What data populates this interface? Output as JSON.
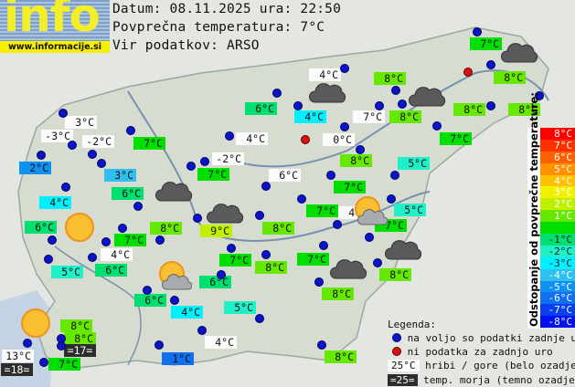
{
  "logo": {
    "big_text": "info",
    "url": "www.informacije.si"
  },
  "header": {
    "date_line": "Datum: 08.11.2025 ura: 22:50",
    "avg_line": "Povprečna temperatura: 7°C",
    "source_line": "Vir podatkov: ARSO"
  },
  "average_temp": 7,
  "stations": [
    {
      "t": "7°C",
      "type": "n"
    },
    {
      "t": "4°C",
      "type": "mt"
    },
    {
      "t": "8°C",
      "type": "n"
    },
    {
      "t": "8°C",
      "type": "n"
    },
    {
      "t": "6°C",
      "type": "n"
    },
    {
      "t": "4°C",
      "type": "n"
    },
    {
      "t": "7°C",
      "type": "mt"
    },
    {
      "t": "8°C",
      "type": "n"
    },
    {
      "t": "8°C",
      "type": "n"
    },
    {
      "t": "8°C",
      "type": "n"
    },
    {
      "t": "3°C",
      "type": "mt"
    },
    {
      "t": "-3°C",
      "type": "mt"
    },
    {
      "t": "-2°C",
      "type": "mt"
    },
    {
      "t": "7°C",
      "type": "n"
    },
    {
      "t": "4°C",
      "type": "mt"
    },
    {
      "t": "0°C",
      "type": "mt"
    },
    {
      "t": "7°C",
      "type": "n"
    },
    {
      "t": "2°C",
      "type": "n"
    },
    {
      "t": "-2°C",
      "type": "mt"
    },
    {
      "t": "3°C",
      "type": "n"
    },
    {
      "t": "7°C",
      "type": "n"
    },
    {
      "t": "8°C",
      "type": "n"
    },
    {
      "t": "5°C",
      "type": "n"
    },
    {
      "t": "6°C",
      "type": "mt"
    },
    {
      "t": "6°C",
      "type": "n"
    },
    {
      "t": "7°C",
      "type": "n"
    },
    {
      "t": "4°C",
      "type": "n"
    },
    {
      "t": "7°C",
      "type": "n"
    },
    {
      "t": "4°C",
      "type": "mt"
    },
    {
      "t": "5°C",
      "type": "n"
    },
    {
      "t": "7°C",
      "type": "n"
    },
    {
      "t": "6°C",
      "type": "n"
    },
    {
      "t": "8°C",
      "type": "n"
    },
    {
      "t": "9°C",
      "type": "n"
    },
    {
      "t": "8°C",
      "type": "n"
    },
    {
      "t": "7°C",
      "type": "n"
    },
    {
      "t": "4°C",
      "type": "mt"
    },
    {
      "t": "7°C",
      "type": "n"
    },
    {
      "t": "8°C",
      "type": "n"
    },
    {
      "t": "7°C",
      "type": "n"
    },
    {
      "t": "8°C",
      "type": "n"
    },
    {
      "t": "5°C",
      "type": "n"
    },
    {
      "t": "6°C",
      "type": "n"
    },
    {
      "t": "6°C",
      "type": "n"
    },
    {
      "t": "8°C",
      "type": "n"
    },
    {
      "t": "6°C",
      "type": "n"
    },
    {
      "t": "4°C",
      "type": "n"
    },
    {
      "t": "5°C",
      "type": "n"
    },
    {
      "t": "8°C",
      "type": "n"
    },
    {
      "t": "8°C",
      "type": "n"
    },
    {
      "t": "=17=",
      "type": "sea"
    },
    {
      "t": "13°C",
      "type": "mt"
    },
    {
      "t": "=18=",
      "type": "sea"
    },
    {
      "t": "7°C",
      "type": "n"
    },
    {
      "t": "1°C",
      "type": "n"
    },
    {
      "t": "4°C",
      "type": "mt"
    },
    {
      "t": "8°C",
      "type": "n"
    }
  ],
  "weather_icons": [
    "cloud",
    "cloud",
    "cloud",
    "cloud",
    "cloud",
    "cloud",
    "cloud",
    "sun",
    "sun",
    "sun-cloud",
    "sun-cloud"
  ],
  "scale": {
    "title": "Odstopanje od povprečne temperature:",
    "entries": [
      {
        "label": "8°C",
        "color": "#ff0000"
      },
      {
        "label": "7°C",
        "color": "#ff3000"
      },
      {
        "label": "6°C",
        "color": "#ff6000"
      },
      {
        "label": "5°C",
        "color": "#ff9000"
      },
      {
        "label": "4°C",
        "color": "#ffc000"
      },
      {
        "label": "3°C",
        "color": "#f0f000"
      },
      {
        "label": "2°C",
        "color": "#c0f000"
      },
      {
        "label": "1°C",
        "color": "#66e800"
      },
      {
        "label": "",
        "color": "#00e000"
      },
      {
        "label": "-1°C",
        "color": "#00e070"
      },
      {
        "label": "-2°C",
        "color": "#20f0c8"
      },
      {
        "label": "-3°C",
        "color": "#00f0ff"
      },
      {
        "label": "-4°C",
        "color": "#30c0f0"
      },
      {
        "label": "-5°C",
        "color": "#1090f0"
      },
      {
        "label": "-6°C",
        "color": "#1070f0"
      },
      {
        "label": "-7°C",
        "color": "#0840f0"
      },
      {
        "label": "-8°C",
        "color": "#0010f0"
      }
    ]
  },
  "legend": {
    "title": "Legenda:",
    "blue_dot": "na voljo so podatki zadnje ure",
    "red_dot": "ni podatka za zadnjo uro",
    "mountain_sample": "25°C",
    "mountain_text": "hribi / gore (belo ozadje)",
    "sea_sample": "=25=",
    "sea_text": "temp. morja (temno ozadje)"
  }
}
